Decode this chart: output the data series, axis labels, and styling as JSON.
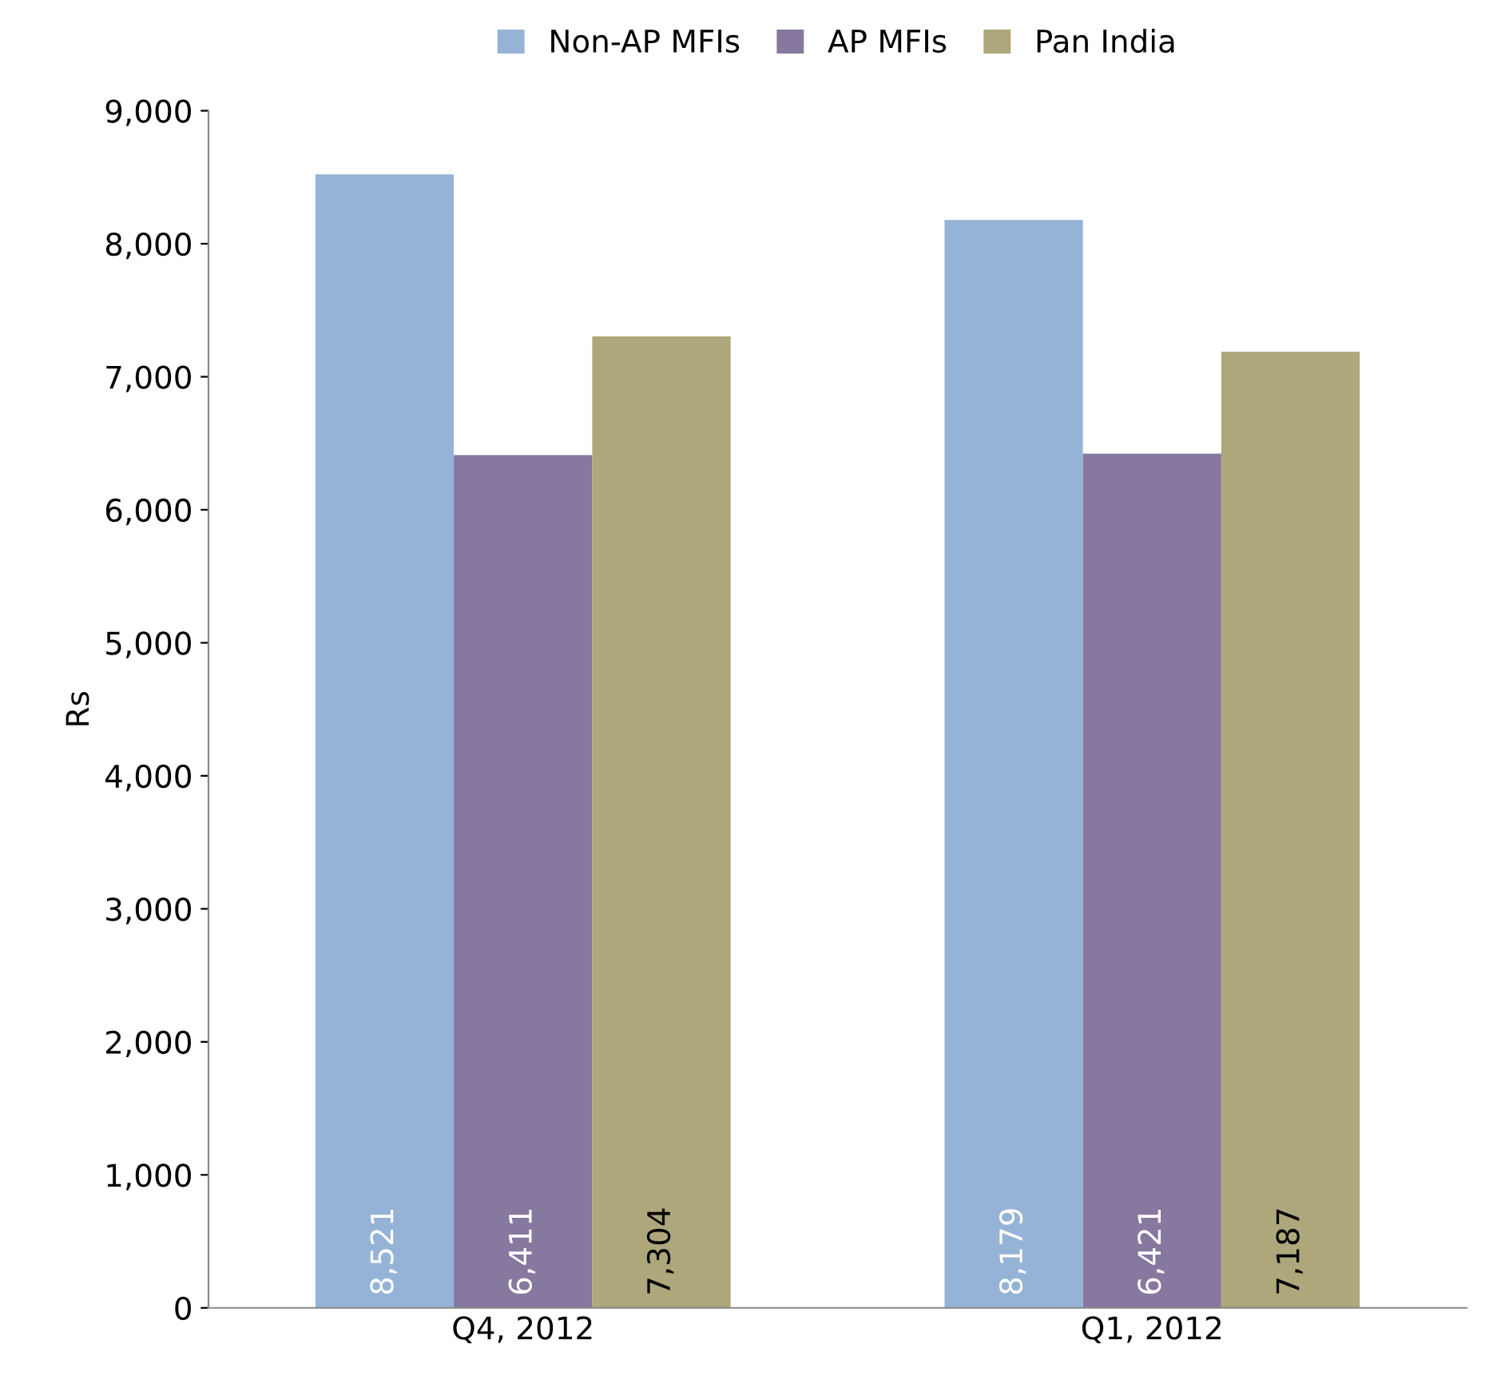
{
  "chart_data": {
    "type": "bar",
    "ylabel": "Rs",
    "categories": [
      "Q4, 2012",
      "Q1, 2012"
    ],
    "series": [
      {
        "name": "Non-AP MFIs",
        "color": "#95b3d7",
        "values": [
          8521,
          8179
        ],
        "value_labels": [
          "8,521",
          "8,179"
        ]
      },
      {
        "name": "AP MFIs",
        "color": "#86789e",
        "values": [
          6411,
          6421
        ],
        "value_labels": [
          "6,411",
          "6,421"
        ]
      },
      {
        "name": "Pan India",
        "color": "#ada77b",
        "values": [
          7304,
          7187
        ],
        "value_labels": [
          "7,304",
          "7,187"
        ]
      }
    ],
    "ylim": [
      0,
      9000
    ],
    "yticks": [
      0,
      {
        "value": 1000,
        "label": "1,000"
      },
      {
        "value": 2000,
        "label": "2,000"
      },
      {
        "value": 3000,
        "label": "3,000"
      },
      {
        "value": 4000,
        "label": "4,000"
      },
      {
        "value": 5000,
        "label": "5,000"
      },
      {
        "value": 6000,
        "label": "6,000"
      },
      {
        "value": 7000,
        "label": "7,000"
      },
      {
        "value": 8000,
        "label": "8,000"
      },
      {
        "value": 9000,
        "label": "9,000"
      }
    ],
    "grid": false,
    "legend": "top"
  }
}
